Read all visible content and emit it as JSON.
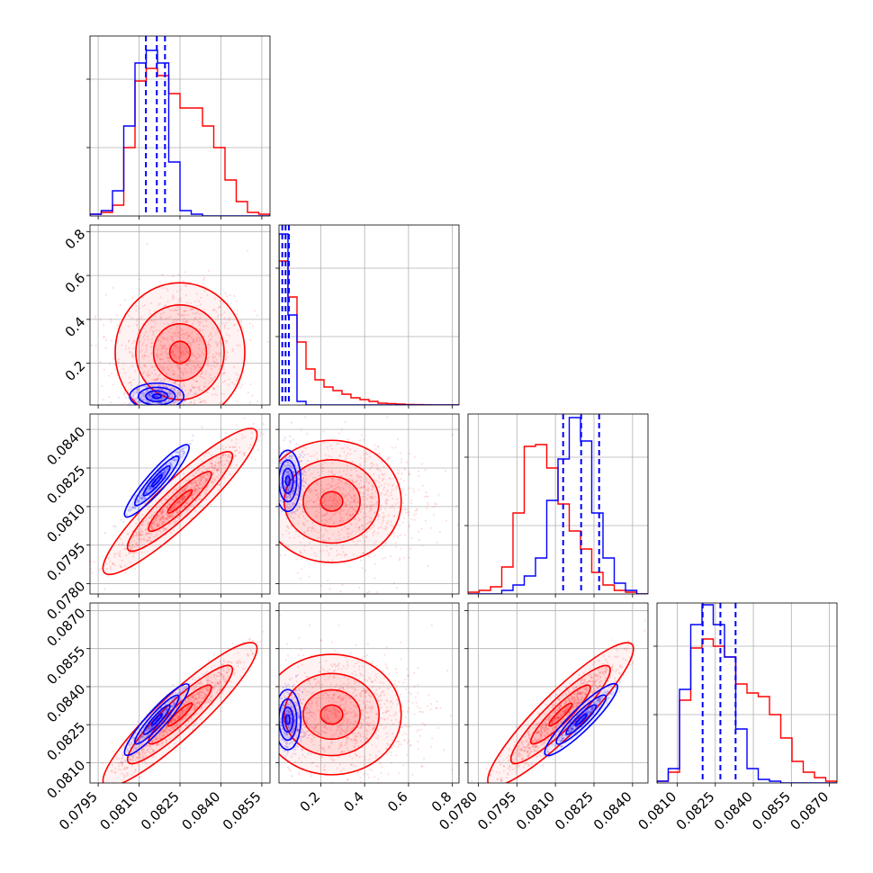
{
  "chart_data": {
    "type": "corner",
    "description_colors": {
      "blue": "#0000ff",
      "red": "#ff0000"
    },
    "parameters": [
      {
        "range": [
          0.0792,
          0.0858
        ],
        "ticks": [
          "0.0795",
          "0.0810",
          "0.0825",
          "0.0840",
          "0.0855"
        ],
        "tick_values": [
          0.0795,
          0.081,
          0.0825,
          0.084,
          0.0855
        ]
      },
      {
        "range": [
          0.01,
          0.83
        ],
        "ticks": [
          "0.2",
          "0.4",
          "0.6",
          "0.8"
        ],
        "tick_values": [
          0.2,
          0.4,
          0.6,
          0.8
        ]
      },
      {
        "range": [
          0.0776,
          0.0846
        ],
        "ticks": [
          "0.0780",
          "0.0795",
          "0.0810",
          "0.0825",
          "0.0840"
        ],
        "tick_values": [
          0.078,
          0.0795,
          0.081,
          0.0825,
          0.084
        ]
      },
      {
        "range": [
          0.0802,
          0.0873
        ],
        "ticks": [
          "0.0810",
          "0.0825",
          "0.0840",
          "0.0855",
          "0.0870"
        ],
        "tick_values": [
          0.081,
          0.0825,
          0.084,
          0.0855,
          0.087
        ]
      }
    ],
    "blue_quantile_lines": [
      [
        0.08125,
        0.08165,
        0.08195
      ],
      [
        0.025,
        0.04,
        0.055
      ],
      [
        0.0813,
        0.082,
        0.0827
      ],
      [
        0.082,
        0.0827,
        0.0833
      ]
    ],
    "histograms": [
      {
        "blue": [
          0.01,
          0.03,
          0.14,
          0.5,
          0.85,
          0.92,
          0.85,
          0.3,
          0.03,
          0.01,
          0,
          0,
          0,
          0,
          0,
          0
        ],
        "red": [
          0.01,
          0.02,
          0.06,
          0.38,
          0.75,
          0.82,
          0.78,
          0.68,
          0.6,
          0.6,
          0.5,
          0.38,
          0.2,
          0.08,
          0.02,
          0.01
        ]
      },
      {
        "blue": [
          0.95,
          0.5,
          0.02,
          0,
          0,
          0,
          0,
          0,
          0,
          0,
          0,
          0,
          0,
          0,
          0,
          0,
          0,
          0,
          0,
          0
        ],
        "red": [
          0.8,
          0.6,
          0.35,
          0.2,
          0.14,
          0.1,
          0.08,
          0.06,
          0.04,
          0.03,
          0.02,
          0.01,
          0.008,
          0.005,
          0.003,
          0.002,
          0.001,
          0,
          0,
          0
        ]
      },
      {
        "blue": [
          0,
          0,
          0,
          0.02,
          0.05,
          0.1,
          0.2,
          0.52,
          0.75,
          0.98,
          0.85,
          0.45,
          0.2,
          0.06,
          0.02,
          0
        ],
        "red": [
          0.01,
          0.02,
          0.04,
          0.15,
          0.45,
          0.82,
          0.83,
          0.7,
          0.5,
          0.35,
          0.25,
          0.12,
          0.05,
          0.02,
          0.01,
          0
        ]
      },
      {
        "blue": [
          0.01,
          0.08,
          0.52,
          0.88,
          0.99,
          0.88,
          0.7,
          0.3,
          0.08,
          0.02,
          0.01,
          0,
          0,
          0,
          0,
          0
        ],
        "red": [
          0.01,
          0.06,
          0.46,
          0.75,
          0.8,
          0.76,
          0.7,
          0.55,
          0.5,
          0.48,
          0.38,
          0.25,
          0.12,
          0.06,
          0.03,
          0.01
        ]
      }
    ]
  }
}
